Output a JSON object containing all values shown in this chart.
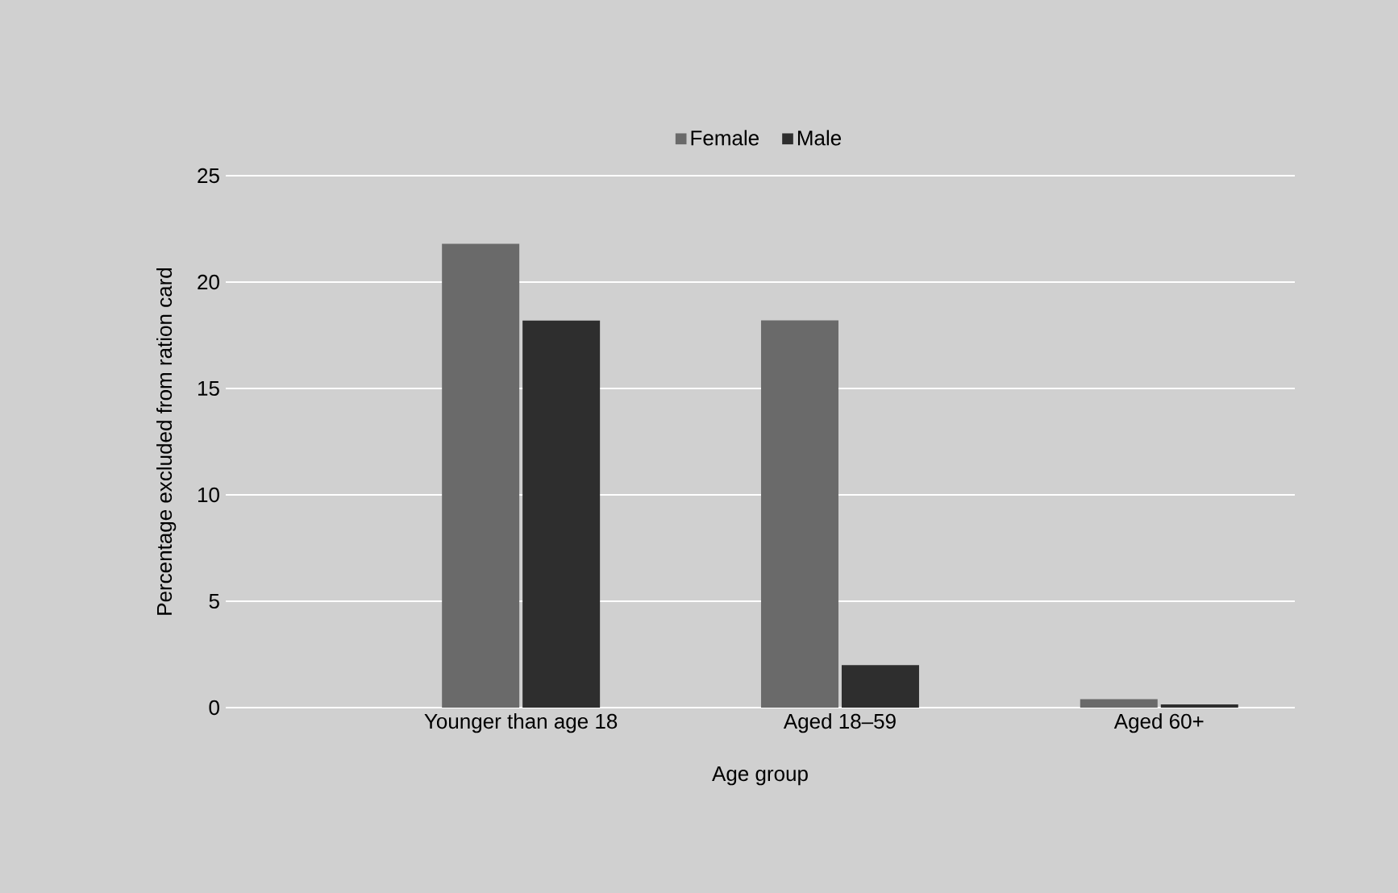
{
  "chart_data": {
    "type": "bar",
    "xlabel": "Age group",
    "ylabel": "Percentage excluded from ration card",
    "categories": [
      "Younger than age 18",
      "Aged 18–59",
      "Aged 60+"
    ],
    "series": [
      {
        "name": "Female",
        "color": "#6a6a6a",
        "values": [
          21.8,
          18.2,
          0.4
        ]
      },
      {
        "name": "Male",
        "color": "#2e2e2e",
        "values": [
          18.2,
          2.0,
          0.15
        ]
      }
    ],
    "ylim": [
      0,
      25
    ],
    "yticks": [
      0,
      5,
      10,
      15,
      20,
      25
    ],
    "grid": "y",
    "legend": "top"
  }
}
